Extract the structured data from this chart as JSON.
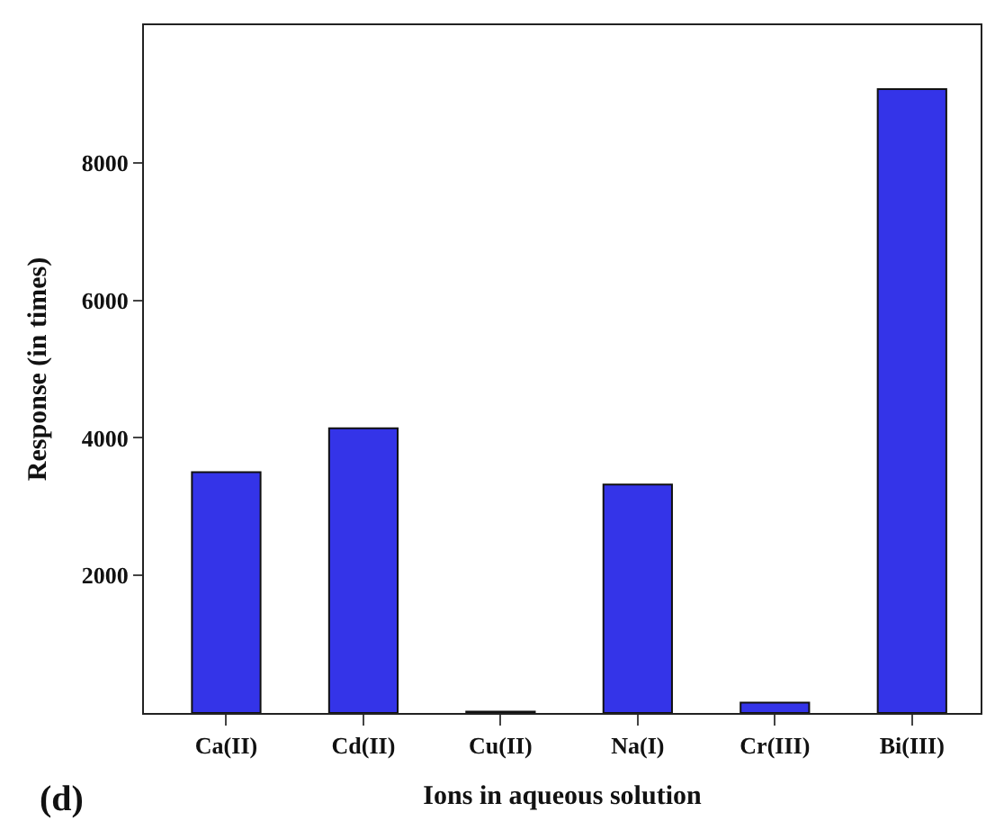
{
  "chart_data": {
    "type": "bar",
    "xlabel": "Ions in aqueous solution",
    "ylabel": "Response (in times)",
    "categories": [
      "Ca(II)",
      "Cd(II)",
      "Cu(II)",
      "Na(I)",
      "Cr(III)",
      "Bi(III)"
    ],
    "values": [
      3500,
      4140,
      20,
      3320,
      150,
      9070
    ],
    "color": "#3434e8",
    "ylim": [
      0,
      10000
    ],
    "yticks": [
      2000,
      4000,
      6000,
      8000
    ],
    "annotations": [
      "(d)"
    ]
  }
}
